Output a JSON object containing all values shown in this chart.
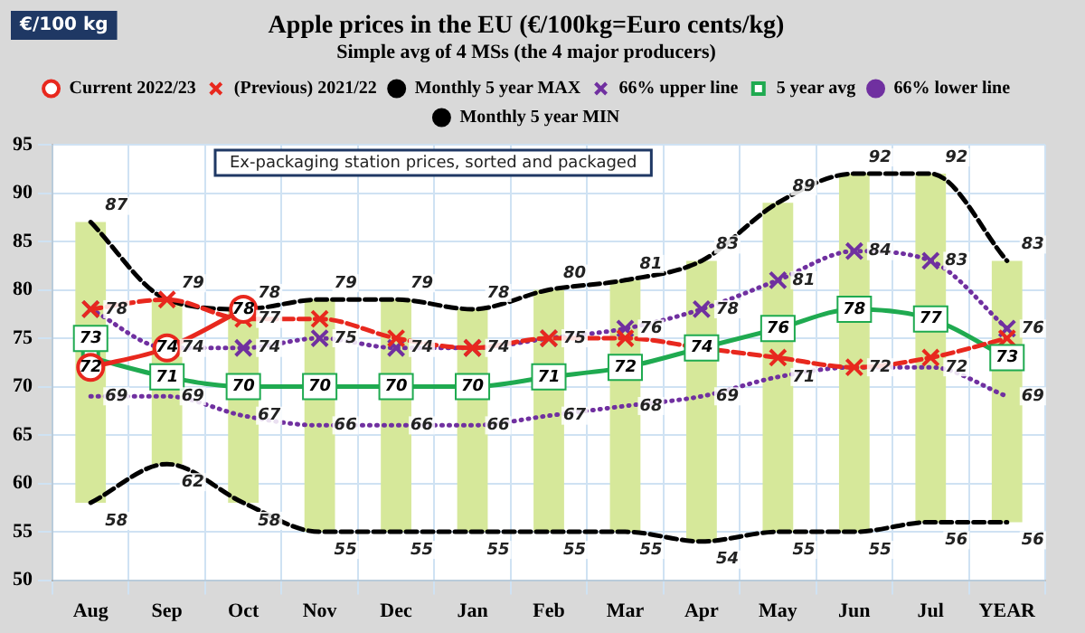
{
  "chart_data": {
    "type": "line",
    "title": "Apple prices in the EU (€/100kg=Euro cents/kg)",
    "subtitle": "Simple avg of 4 MSs (the 4 major producers)",
    "categories": [
      "Aug",
      "Sep",
      "Oct",
      "Nov",
      "Dec",
      "Jan",
      "Feb",
      "Mar",
      "Apr",
      "May",
      "Jun",
      "Jul",
      "YEAR"
    ],
    "ylim": [
      50,
      95
    ],
    "yticks": [
      50,
      55,
      60,
      65,
      70,
      75,
      80,
      85,
      90,
      95
    ],
    "grid": true,
    "legend": "top",
    "annotations": [
      "€/100 kg",
      "Ex-packaging station prices, sorted and packaged"
    ],
    "series": [
      {
        "type": "bar",
        "color": "#d6e89a",
        "base": [
          58,
          62,
          58,
          55,
          55,
          55,
          55,
          55,
          54,
          55,
          55,
          56,
          56
        ],
        "values": [
          29,
          17,
          20,
          24,
          24,
          23,
          25,
          26,
          29,
          34,
          37,
          36,
          27
        ]
      },
      {
        "name": "Current 2022/23",
        "color": "#e8281e",
        "marker": "circle",
        "line_style": "solid",
        "values": [
          72,
          74,
          78,
          null,
          null,
          null,
          null,
          null,
          null,
          null,
          null,
          null,
          null
        ],
        "value_labels": [
          "72",
          "74",
          "78",
          null,
          null,
          null,
          null,
          null,
          null,
          null,
          null,
          null,
          null
        ]
      },
      {
        "name": "(Previous) 2021/22",
        "color": "#e8281e",
        "marker": "cross",
        "line_style": "dashed",
        "values": [
          78,
          79,
          77,
          77,
          75,
          74,
          75,
          75,
          74,
          73,
          72,
          73,
          75
        ],
        "value_labels": [
          null,
          null,
          "77",
          null,
          null,
          null,
          null,
          null,
          null,
          null,
          null,
          null,
          null
        ]
      },
      {
        "name": "Monthly 5 year MAX",
        "color": "#000000",
        "marker": "none",
        "line_style": "dashed",
        "values": [
          87,
          79,
          78,
          79,
          79,
          78,
          80,
          81,
          83,
          89,
          92,
          92,
          83
        ],
        "value_labels": [
          "87",
          "79",
          "78",
          "79",
          "79",
          "78",
          "80",
          "81",
          "83",
          "89",
          "92",
          "92",
          "83"
        ]
      },
      {
        "name": "66% upper line",
        "color": "#7030a0",
        "marker": "cross",
        "line_style": "dotted",
        "values": [
          78,
          74,
          74,
          75,
          74,
          74,
          75,
          76,
          78,
          81,
          84,
          83,
          76
        ],
        "value_labels": [
          "78",
          "74",
          "74",
          "75",
          "74",
          "74",
          "75",
          "76",
          "78",
          "81",
          "84",
          "83",
          "76"
        ]
      },
      {
        "name": "5 year avg",
        "color": "#1faa50",
        "marker": "square",
        "line_style": "solid",
        "values": [
          73,
          71,
          70,
          70,
          70,
          70,
          71,
          72,
          74,
          76,
          78,
          77,
          73
        ],
        "value_labels": [
          "73",
          "71",
          "70",
          "70",
          "70",
          "70",
          "71",
          "72",
          "74",
          "76",
          "78",
          "77",
          "73"
        ]
      },
      {
        "name": "66% lower line",
        "color": "#7030a0",
        "marker": "none",
        "line_style": "dotted",
        "values": [
          69,
          69,
          67,
          66,
          66,
          66,
          67,
          68,
          69,
          71,
          72,
          72,
          69
        ],
        "value_labels": [
          "69",
          "69",
          "67",
          "66",
          "66",
          "66",
          "67",
          "68",
          "69",
          "71",
          "72",
          "72",
          "69"
        ]
      },
      {
        "name": "Monthly 5 year MIN",
        "color": "#000000",
        "marker": "none",
        "line_style": "dashed",
        "values": [
          58,
          62,
          58,
          55,
          55,
          55,
          55,
          55,
          54,
          55,
          55,
          56,
          56
        ],
        "value_labels": [
          "58",
          "62",
          "58",
          "55",
          "55",
          "55",
          "55",
          "55",
          "54",
          "55",
          "55",
          "56",
          "56"
        ]
      }
    ]
  }
}
